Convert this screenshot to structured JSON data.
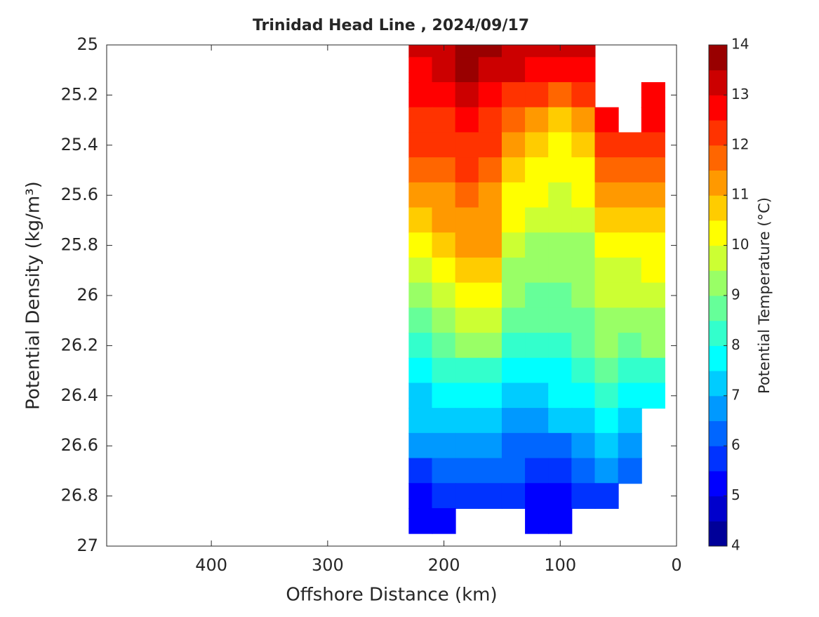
{
  "chart_data": {
    "type": "contour",
    "title": "Trinidad Head Line , 2024/09/17",
    "x_label": "Offshore Distance (km)",
    "y_label": "Potential Density (kg/m³)",
    "colorbar_label": "Potential Temperature (°C)",
    "xlim": [
      490,
      0
    ],
    "xticks": [
      400,
      300,
      200,
      100,
      0
    ],
    "ylim": [
      27,
      25
    ],
    "yticks": [
      25,
      25.2,
      25.4,
      25.6,
      25.8,
      26,
      26.2,
      26.4,
      26.6,
      26.8,
      27
    ],
    "colorbar_lim": [
      4,
      14
    ],
    "colorbar_ticks": [
      4,
      5,
      6,
      7,
      8,
      9,
      10,
      11,
      12,
      13,
      14
    ],
    "colors": [
      "#000099",
      "#0000cc",
      "#0000ff",
      "#0033ff",
      "#0066ff",
      "#0099ff",
      "#00ccff",
      "#00ffff",
      "#33ffcc",
      "#66ff99",
      "#99ff66",
      "#ccff33",
      "#ffff00",
      "#ffcc00",
      "#ff9900",
      "#ff6600",
      "#ff3300",
      "#ff0000",
      "#cc0000",
      "#990000"
    ],
    "x": [
      220,
      200,
      180,
      160,
      140,
      120,
      100,
      80,
      60,
      40,
      20
    ],
    "y": [
      25.0,
      25.1,
      25.2,
      25.3,
      25.4,
      25.5,
      25.6,
      25.7,
      25.8,
      25.9,
      26.0,
      26.1,
      26.2,
      26.3,
      26.4,
      26.5,
      26.6,
      26.7,
      26.8,
      26.9
    ],
    "z": [
      [
        13.0,
        13.3,
        13.8,
        13.6,
        13.4,
        13.3,
        13.0,
        13.4,
        null,
        null,
        null
      ],
      [
        12.9,
        13.0,
        13.5,
        13.2,
        13.0,
        12.8,
        12.5,
        12.9,
        null,
        null,
        null
      ],
      [
        12.7,
        12.7,
        13.1,
        12.8,
        12.3,
        12.0,
        11.6,
        12.2,
        null,
        null,
        12.9
      ],
      [
        12.3,
        12.3,
        12.8,
        12.4,
        11.7,
        11.3,
        10.9,
        11.4,
        12.7,
        null,
        12.5
      ],
      [
        12.0,
        12.0,
        12.4,
        12.0,
        11.0,
        10.7,
        10.4,
        10.7,
        12.3,
        12.3,
        12.0
      ],
      [
        11.5,
        11.7,
        12.0,
        11.7,
        10.6,
        10.3,
        10.1,
        10.3,
        11.6,
        11.8,
        11.5
      ],
      [
        11.2,
        11.3,
        11.7,
        11.4,
        10.3,
        10.0,
        9.8,
        10.0,
        11.0,
        11.3,
        11.1
      ],
      [
        10.7,
        11.0,
        11.3,
        11.2,
        10.0,
        9.7,
        9.5,
        9.6,
        10.6,
        10.8,
        10.7
      ],
      [
        10.2,
        10.6,
        11.0,
        11.0,
        9.6,
        9.4,
        9.3,
        9.3,
        10.2,
        10.3,
        10.3
      ],
      [
        9.7,
        10.2,
        10.7,
        10.8,
        9.3,
        9.0,
        9.1,
        9.1,
        9.9,
        9.9,
        10.0
      ],
      [
        9.2,
        9.7,
        10.3,
        10.4,
        9.0,
        8.8,
        8.9,
        9.0,
        9.6,
        9.6,
        9.7
      ],
      [
        8.7,
        9.2,
        9.8,
        9.8,
        8.7,
        8.5,
        8.6,
        8.8,
        9.3,
        9.3,
        9.4
      ],
      [
        8.3,
        8.7,
        9.0,
        9.0,
        8.3,
        8.2,
        8.3,
        8.6,
        9.0,
        8.9,
        9.0
      ],
      [
        7.9,
        8.2,
        8.4,
        8.3,
        7.9,
        7.9,
        7.9,
        8.3,
        8.6,
        8.4,
        8.3
      ],
      [
        7.4,
        7.6,
        7.9,
        7.8,
        7.4,
        7.4,
        7.5,
        7.8,
        8.2,
        7.9,
        7.8
      ],
      [
        7.0,
        7.1,
        7.4,
        7.3,
        6.9,
        6.9,
        7.0,
        7.2,
        7.6,
        7.3,
        null
      ],
      [
        6.5,
        6.6,
        6.9,
        6.8,
        6.4,
        6.3,
        6.4,
        6.7,
        7.0,
        6.8,
        null
      ],
      [
        5.9,
        6.0,
        6.3,
        6.2,
        6.0,
        5.8,
        5.8,
        6.2,
        6.5,
        6.3,
        null
      ],
      [
        5.4,
        5.5,
        5.8,
        5.8,
        5.6,
        5.4,
        5.3,
        5.7,
        5.9,
        null,
        null
      ],
      [
        5.2,
        5.2,
        null,
        null,
        null,
        5.3,
        5.2,
        null,
        null,
        null,
        null
      ]
    ]
  }
}
